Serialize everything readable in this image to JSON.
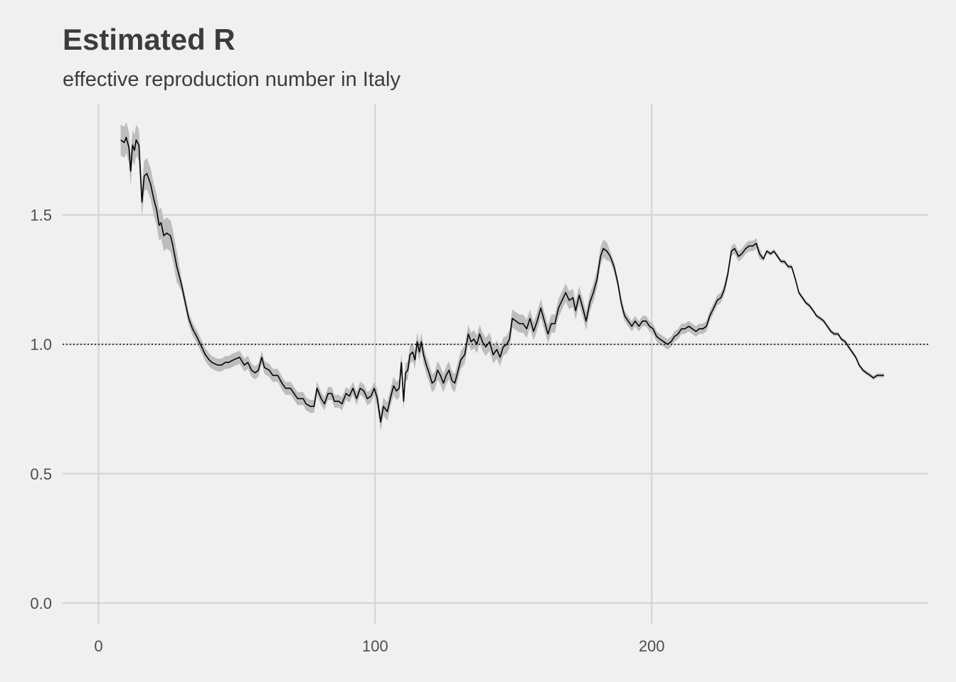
{
  "chart_data": {
    "type": "line",
    "title": "Estimated R",
    "subtitle": "effective reproduction number in Italy",
    "xlabel": "",
    "ylabel": "",
    "xlim": [
      -13,
      300
    ],
    "ylim": [
      -0.08,
      1.93
    ],
    "x_ticks": [
      0,
      100,
      200
    ],
    "x_tick_labels": [
      "0",
      "100",
      "200"
    ],
    "y_ticks": [
      0,
      0.5,
      1,
      1.5
    ],
    "y_tick_labels": [
      "0.0",
      "0.5",
      "1.0",
      "1.5"
    ],
    "grid": true,
    "reference_line": {
      "y": 1.0,
      "style": "dotted"
    },
    "colors": {
      "line": "#000000",
      "ribbon": "#bdbdbd",
      "grid": "#d2d2d2",
      "background": "#f0f0f0",
      "text": "#3c3c3c"
    },
    "ci_halfwidth_segments": [
      {
        "from": 0,
        "to": 30,
        "hw": 0.06
      },
      {
        "from": 30,
        "to": 100,
        "hw": 0.025
      },
      {
        "from": 100,
        "to": 185,
        "hw": 0.035
      },
      {
        "from": 185,
        "to": 240,
        "hw": 0.02
      },
      {
        "from": 240,
        "to": 300,
        "hw": 0.008
      }
    ],
    "x": [
      8,
      9.3,
      10,
      11,
      11.6,
      12.3,
      13,
      13.6,
      14.6,
      15.7,
      16.5,
      17.5,
      18.8,
      20,
      21,
      21.9,
      22.6,
      23.6,
      24.7,
      26,
      26.7,
      28.3,
      30,
      31.4,
      32.6,
      34,
      35.5,
      37.3,
      38.6,
      40,
      41,
      43,
      44.5,
      45.8,
      47,
      48.8,
      51,
      52.7,
      54,
      55.3,
      56.6,
      57.8,
      59,
      60,
      61.7,
      63,
      64.8,
      66.3,
      67.6,
      69.4,
      70.7,
      72,
      74,
      75,
      76.6,
      77.9,
      79,
      80.5,
      81.7,
      83,
      84.3,
      85.3,
      86.9,
      88,
      89.5,
      90.7,
      92,
      93.3,
      94.6,
      95.9,
      97.2,
      98.5,
      99.7,
      100.8,
      102,
      103,
      104.4,
      105.7,
      106.7,
      107.7,
      108.7,
      109.5,
      110.3,
      111,
      111.8,
      112.6,
      113.6,
      114.4,
      115.2,
      116,
      116.7,
      117.5,
      118.5,
      119.5,
      120.6,
      121.6,
      122.6,
      123.6,
      124.7,
      125.7,
      126.7,
      127.8,
      128.8,
      129.8,
      131,
      132.4,
      133.7,
      134.7,
      135.7,
      136.8,
      137.8,
      138.8,
      140,
      141.4,
      142.7,
      144,
      145.2,
      146.3,
      147.6,
      148.6,
      149.6,
      150.9,
      152.2,
      153.5,
      154.8,
      156,
      157.3,
      158.6,
      159.9,
      161.2,
      162.5,
      163.7,
      165,
      166.3,
      167.6,
      168.9,
      170.2,
      171.5,
      172.5,
      173.8,
      175.1,
      176.3,
      177.6,
      178.9,
      180.2,
      181.5,
      182.5,
      183.8,
      185,
      186.4,
      187.7,
      189,
      190.2,
      191.5,
      192.8,
      194,
      195.4,
      196.7,
      198,
      199.2,
      200.5,
      201.8,
      203,
      204.4,
      205.7,
      207,
      208.2,
      209.5,
      210.8,
      212,
      213.4,
      214.7,
      216,
      217.2,
      218.5,
      219.8,
      221,
      222.4,
      223.7,
      225,
      226.2,
      227.5,
      228.8,
      230,
      231.4,
      232.6,
      234,
      235.2,
      236.5,
      237.8,
      239,
      240.4,
      241.6,
      243,
      244.2,
      245.5,
      246.8,
      248,
      249.4,
      250.6,
      252,
      253.2,
      254.5,
      255.8,
      257,
      258.4,
      259.6,
      261,
      262.2,
      263.5,
      264.8,
      266,
      267.4,
      268.6,
      270,
      271.2,
      272.5,
      273.8,
      275,
      276.4,
      277.6,
      279,
      280.2,
      281.5,
      282.8,
      284
    ],
    "y": [
      1.79,
      1.78,
      1.8,
      1.76,
      1.67,
      1.77,
      1.75,
      1.79,
      1.77,
      1.55,
      1.65,
      1.66,
      1.62,
      1.56,
      1.52,
      1.46,
      1.47,
      1.42,
      1.43,
      1.42,
      1.39,
      1.3,
      1.23,
      1.16,
      1.1,
      1.06,
      1.03,
      0.99,
      0.96,
      0.94,
      0.93,
      0.92,
      0.92,
      0.93,
      0.93,
      0.94,
      0.95,
      0.92,
      0.93,
      0.9,
      0.89,
      0.9,
      0.95,
      0.91,
      0.9,
      0.88,
      0.88,
      0.85,
      0.83,
      0.83,
      0.81,
      0.79,
      0.79,
      0.77,
      0.76,
      0.76,
      0.83,
      0.79,
      0.77,
      0.81,
      0.81,
      0.78,
      0.78,
      0.77,
      0.81,
      0.8,
      0.83,
      0.79,
      0.83,
      0.82,
      0.79,
      0.8,
      0.83,
      0.79,
      0.7,
      0.76,
      0.74,
      0.8,
      0.84,
      0.82,
      0.83,
      0.93,
      0.78,
      0.89,
      0.9,
      0.96,
      0.97,
      0.94,
      1.01,
      0.97,
      1.01,
      0.96,
      0.92,
      0.89,
      0.85,
      0.86,
      0.9,
      0.88,
      0.85,
      0.88,
      0.9,
      0.86,
      0.85,
      0.89,
      0.94,
      0.96,
      1.04,
      1.01,
      1.02,
      1.0,
      1.04,
      1.01,
      0.99,
      1.01,
      0.96,
      0.98,
      0.95,
      0.99,
      1.0,
      1.02,
      1.1,
      1.09,
      1.08,
      1.08,
      1.06,
      1.1,
      1.05,
      1.09,
      1.14,
      1.09,
      1.04,
      1.08,
      1.08,
      1.14,
      1.17,
      1.2,
      1.17,
      1.18,
      1.13,
      1.19,
      1.14,
      1.09,
      1.16,
      1.2,
      1.25,
      1.34,
      1.37,
      1.36,
      1.34,
      1.3,
      1.24,
      1.16,
      1.11,
      1.09,
      1.07,
      1.09,
      1.07,
      1.09,
      1.09,
      1.07,
      1.06,
      1.03,
      1.02,
      1.01,
      1.0,
      1.01,
      1.03,
      1.04,
      1.06,
      1.06,
      1.07,
      1.06,
      1.05,
      1.06,
      1.06,
      1.07,
      1.11,
      1.14,
      1.17,
      1.18,
      1.21,
      1.27,
      1.36,
      1.37,
      1.34,
      1.35,
      1.37,
      1.38,
      1.38,
      1.39,
      1.35,
      1.33,
      1.36,
      1.35,
      1.36,
      1.34,
      1.32,
      1.32,
      1.3,
      1.3,
      1.25,
      1.2,
      1.18,
      1.16,
      1.15,
      1.13,
      1.11,
      1.1,
      1.09,
      1.07,
      1.05,
      1.04,
      1.04,
      1.02,
      1.01,
      0.99,
      0.97,
      0.95,
      0.92,
      0.9,
      0.89,
      0.88,
      0.87,
      0.88,
      0.88,
      0.88
    ]
  }
}
